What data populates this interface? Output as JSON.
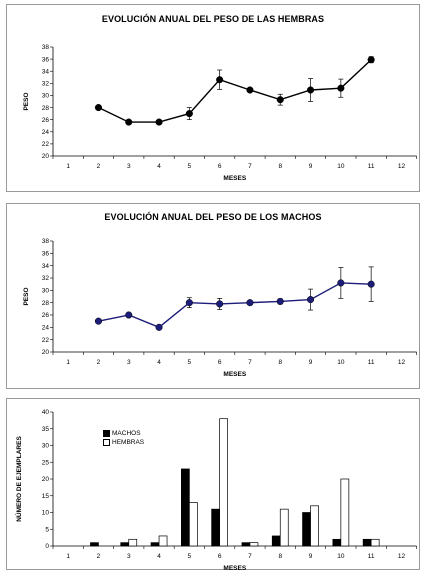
{
  "chart_data": [
    {
      "type": "line",
      "title": "EVOLUCIÓN ANUAL DEL PESO DE LAS HEMBRAS",
      "xlabel": "MESES",
      "ylabel": "PESO",
      "x": [
        "1",
        "2",
        "3",
        "4",
        "5",
        "6",
        "7",
        "8",
        "9",
        "10",
        "11",
        "12"
      ],
      "ylim": [
        20,
        38
      ],
      "yticks": [
        "20",
        "22",
        "24",
        "26",
        "28",
        "30",
        "32",
        "34",
        "36",
        "38"
      ],
      "grid": false,
      "series": [
        {
          "color": "#000000",
          "points": [
            {
              "x": 2,
              "y": 28.0,
              "err": 0
            },
            {
              "x": 3,
              "y": 25.6,
              "err": 0
            },
            {
              "x": 4,
              "y": 25.6,
              "err": 0
            },
            {
              "x": 5,
              "y": 27.0,
              "err": 1.0
            },
            {
              "x": 6,
              "y": 32.6,
              "err": 1.6
            },
            {
              "x": 7,
              "y": 30.9,
              "err": 0
            },
            {
              "x": 8,
              "y": 29.3,
              "err": 0.9
            },
            {
              "x": 9,
              "y": 30.9,
              "err": 1.9
            },
            {
              "x": 10,
              "y": 31.2,
              "err": 1.5
            },
            {
              "x": 11,
              "y": 35.9,
              "err": 0.5
            }
          ]
        }
      ]
    },
    {
      "type": "line",
      "title": "EVOLUCIÓN ANUAL DEL PESO DE LOS MACHOS",
      "xlabel": "MESES",
      "ylabel": "PESO",
      "x": [
        "1",
        "2",
        "3",
        "4",
        "5",
        "6",
        "7",
        "8",
        "9",
        "10",
        "11",
        "12"
      ],
      "ylim": [
        20,
        38
      ],
      "yticks": [
        "20",
        "22",
        "24",
        "26",
        "28",
        "30",
        "32",
        "34",
        "36",
        "38"
      ],
      "grid": false,
      "series": [
        {
          "color": "#1c1c7a",
          "points": [
            {
              "x": 2,
              "y": 25.0,
              "err": 0
            },
            {
              "x": 3,
              "y": 26.0,
              "err": 0
            },
            {
              "x": 4,
              "y": 24.0,
              "err": 0
            },
            {
              "x": 5,
              "y": 28.0,
              "err": 0.8
            },
            {
              "x": 6,
              "y": 27.8,
              "err": 0.9
            },
            {
              "x": 7,
              "y": 28.0,
              "err": 0
            },
            {
              "x": 8,
              "y": 28.2,
              "err": 0.4
            },
            {
              "x": 9,
              "y": 28.5,
              "err": 1.7
            },
            {
              "x": 10,
              "y": 31.2,
              "err": 2.5
            },
            {
              "x": 11,
              "y": 31.0,
              "err": 2.8
            }
          ]
        }
      ]
    },
    {
      "type": "bar",
      "title": "",
      "xlabel": "MESES",
      "ylabel": "NÚMERO DE EJEMPLARES",
      "categories": [
        "1",
        "2",
        "3",
        "4",
        "5",
        "6",
        "7",
        "8",
        "9",
        "10",
        "11",
        "12"
      ],
      "ylim": [
        0,
        40
      ],
      "yticks": [
        "0",
        "5",
        "10",
        "15",
        "20",
        "25",
        "30",
        "35",
        "40"
      ],
      "grid": false,
      "legend_position": "top-left",
      "series": [
        {
          "name": "MACHOS",
          "color": "#000000",
          "values": [
            0,
            1,
            1,
            1,
            23,
            11,
            1,
            3,
            10,
            2,
            2,
            0
          ]
        },
        {
          "name": "HEMBRAS",
          "color": "#ffffff",
          "values": [
            0,
            0,
            2,
            3,
            13,
            38,
            1,
            11,
            12,
            20,
            2,
            0
          ]
        }
      ]
    }
  ]
}
